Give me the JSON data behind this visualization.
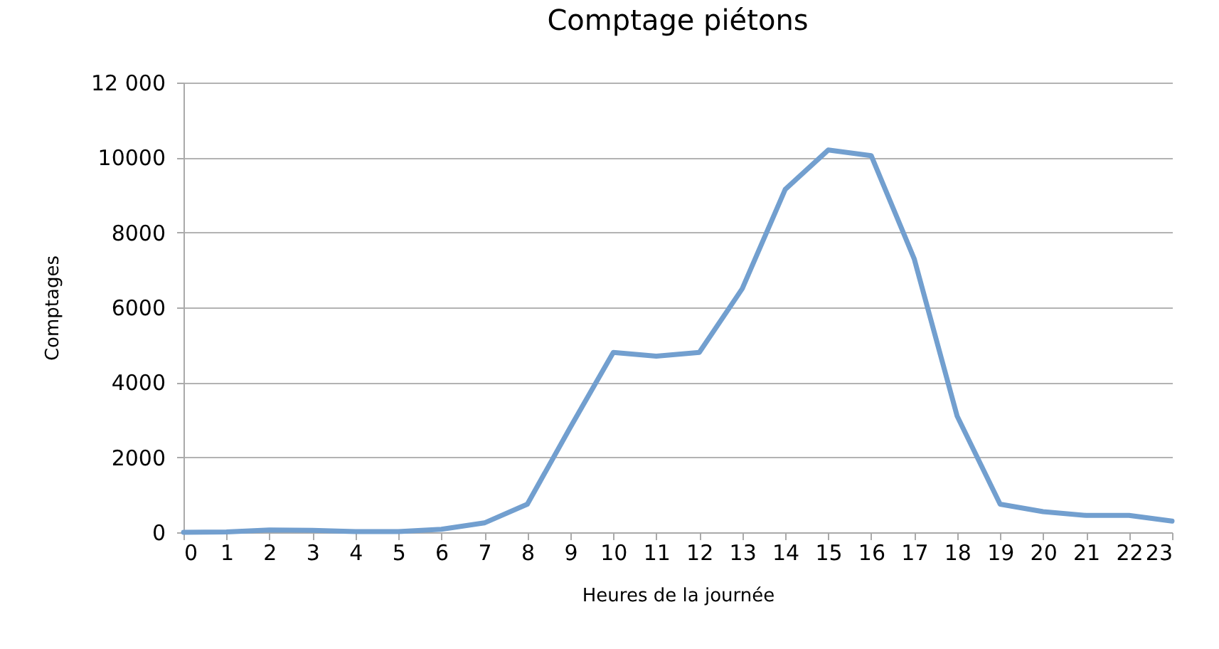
{
  "chart_data": {
    "type": "line",
    "title": "Comptage piétons",
    "xlabel": "Heures de la journée",
    "ylabel": "Comptages",
    "x": [
      0,
      1,
      2,
      3,
      4,
      5,
      6,
      7,
      8,
      9,
      10,
      11,
      12,
      13,
      14,
      15,
      16,
      17,
      18,
      19,
      20,
      21,
      22,
      23
    ],
    "series": [
      {
        "color": "#729fcf",
        "values": [
          0,
          10,
          60,
          50,
          20,
          20,
          80,
          250,
          750,
          2800,
          4800,
          4700,
          4800,
          6500,
          9150,
          10200,
          10050,
          7300,
          3100,
          750,
          550,
          450,
          450,
          300
        ]
      }
    ],
    "xlim": [
      0,
      23
    ],
    "xticks": [
      0,
      1,
      2,
      3,
      4,
      5,
      6,
      7,
      8,
      9,
      10,
      11,
      12,
      13,
      14,
      15,
      16,
      17,
      18,
      19,
      20,
      21,
      22,
      23
    ],
    "ylim": [
      0,
      12000
    ],
    "yticks": [
      0,
      2000,
      4000,
      6000,
      8000,
      10000,
      {
        "value": 12000,
        "label": "12 000"
      }
    ],
    "grid": "y",
    "legend": false,
    "marker": "none",
    "line_style": "solid"
  }
}
